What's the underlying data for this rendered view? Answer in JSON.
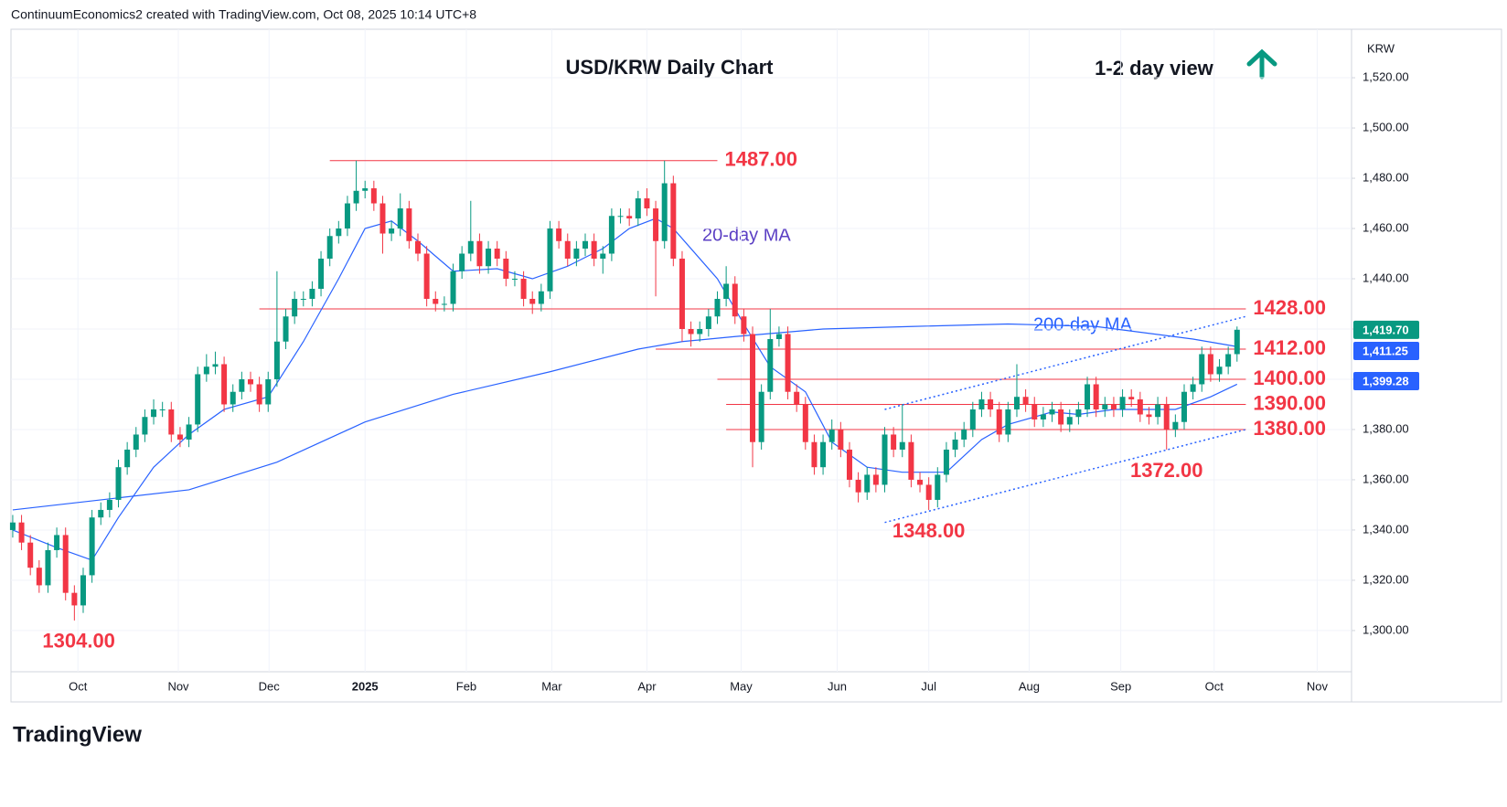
{
  "header": "ContinuumEconomics2 created with TradingView.com, Oct 08, 2025 10:14 UTC+8",
  "brand": "TradingView",
  "chart_data": {
    "type": "candlestick",
    "title": "USD/KRW Daily Chart",
    "subtitle": "1-2 day view",
    "y_axis_label": "KRW",
    "up_color": "#089981",
    "down_color": "#f23645",
    "xlim": [
      -0.2,
      152
    ],
    "ylim": [
      1283.6,
      1539.3
    ],
    "yticks": [
      {
        "value": 1300,
        "label": "1,300.00"
      },
      {
        "value": 1320,
        "label": "1,320.00"
      },
      {
        "value": 1340,
        "label": "1,340.00"
      },
      {
        "value": 1360,
        "label": "1,360.00"
      },
      {
        "value": 1380,
        "label": "1,380.00"
      },
      {
        "value": 1400,
        "label": "1,400.00"
      },
      {
        "value": 1420,
        "label": "1,420.00"
      },
      {
        "value": 1440,
        "label": "1,440.00"
      },
      {
        "value": 1460,
        "label": "1,460.00"
      },
      {
        "value": 1480,
        "label": "1,480.00"
      },
      {
        "value": 1500,
        "label": "1,500.00"
      },
      {
        "value": 1520,
        "label": "1,520.00"
      }
    ],
    "xticks": [
      {
        "value": 7.4,
        "label": "Oct"
      },
      {
        "value": 18.8,
        "label": "Nov"
      },
      {
        "value": 29.1,
        "label": "Dec"
      },
      {
        "value": 40,
        "label": "2025"
      },
      {
        "value": 51.5,
        "label": "Feb"
      },
      {
        "value": 61.2,
        "label": "Mar"
      },
      {
        "value": 72,
        "label": "Apr"
      },
      {
        "value": 82.7,
        "label": "May"
      },
      {
        "value": 93.6,
        "label": "Jun"
      },
      {
        "value": 104,
        "label": "Jul"
      },
      {
        "value": 115.4,
        "label": "Aug"
      },
      {
        "value": 125.8,
        "label": "Sep"
      },
      {
        "value": 136.4,
        "label": "Oct"
      },
      {
        "value": 148.1,
        "label": "Nov"
      }
    ],
    "grid": true,
    "open": [
      1340,
      1343,
      1335,
      1325,
      1318,
      1332,
      1338,
      1315,
      1310,
      1322,
      1345,
      1348,
      1352,
      1365,
      1372,
      1378,
      1385,
      1388,
      1388,
      1378,
      1376,
      1382,
      1402,
      1405,
      1406,
      1390,
      1395,
      1400,
      1398,
      1390,
      1400,
      1415,
      1425,
      1432,
      1432,
      1436,
      1448,
      1457,
      1460,
      1470,
      1475,
      1476,
      1470,
      1458,
      1460,
      1468,
      1455,
      1450,
      1432,
      1430,
      1430,
      1443,
      1450,
      1455,
      1445,
      1452,
      1448,
      1440,
      1440,
      1432,
      1430,
      1435,
      1460,
      1455,
      1448,
      1452,
      1455,
      1448,
      1450,
      1465,
      1465,
      1464,
      1472,
      1468,
      1455,
      1478,
      1448,
      1420,
      1418,
      1420,
      1425,
      1432,
      1438,
      1425,
      1418,
      1375,
      1395,
      1416,
      1418,
      1395,
      1390,
      1375,
      1365,
      1375,
      1380,
      1372,
      1360,
      1355,
      1362,
      1358,
      1378,
      1372,
      1375,
      1360,
      1358,
      1352,
      1362,
      1372,
      1376,
      1380,
      1388,
      1392,
      1388,
      1378,
      1388,
      1393,
      1390,
      1384,
      1386,
      1388,
      1382,
      1385,
      1388,
      1398,
      1388,
      1390,
      1388,
      1393,
      1392,
      1386,
      1385,
      1390,
      1380,
      1383,
      1395,
      1398,
      1410,
      1402,
      1405,
      1410
    ],
    "high": [
      1346,
      1346,
      1338,
      1328,
      1335,
      1341,
      1341,
      1318,
      1325,
      1348,
      1351,
      1355,
      1368,
      1375,
      1381,
      1388,
      1392,
      1391,
      1391,
      1381,
      1385,
      1405,
      1410,
      1411,
      1409,
      1398,
      1403,
      1403,
      1401,
      1403,
      1443,
      1428,
      1435,
      1435,
      1439,
      1451,
      1460,
      1463,
      1473,
      1487,
      1479,
      1479,
      1473,
      1463,
      1474,
      1471,
      1458,
      1453,
      1435,
      1433,
      1446,
      1453,
      1471,
      1458,
      1455,
      1455,
      1451,
      1443,
      1443,
      1435,
      1438,
      1463,
      1463,
      1458,
      1455,
      1458,
      1458,
      1453,
      1468,
      1468,
      1468,
      1475,
      1476,
      1471,
      1487,
      1481,
      1451,
      1423,
      1423,
      1428,
      1435,
      1445,
      1441,
      1428,
      1421,
      1398,
      1428,
      1421,
      1421,
      1398,
      1393,
      1378,
      1378,
      1384,
      1383,
      1375,
      1363,
      1365,
      1365,
      1381,
      1381,
      1390,
      1378,
      1363,
      1361,
      1365,
      1375,
      1379,
      1383,
      1391,
      1395,
      1395,
      1391,
      1391,
      1406,
      1396,
      1393,
      1389,
      1391,
      1391,
      1388,
      1391,
      1401,
      1401,
      1393,
      1393,
      1396,
      1396,
      1395,
      1389,
      1393,
      1393,
      1386,
      1398,
      1401,
      1413,
      1413,
      1408,
      1413,
      1421
    ],
    "low": [
      1337,
      1332,
      1322,
      1315,
      1315,
      1329,
      1312,
      1304,
      1307,
      1319,
      1342,
      1345,
      1349,
      1362,
      1369,
      1375,
      1382,
      1385,
      1375,
      1373,
      1373,
      1379,
      1399,
      1402,
      1387,
      1387,
      1392,
      1395,
      1387,
      1387,
      1397,
      1412,
      1422,
      1429,
      1429,
      1433,
      1445,
      1454,
      1457,
      1467,
      1472,
      1467,
      1450,
      1455,
      1457,
      1452,
      1447,
      1429,
      1427,
      1427,
      1427,
      1440,
      1447,
      1442,
      1442,
      1445,
      1437,
      1437,
      1429,
      1426,
      1427,
      1432,
      1452,
      1445,
      1445,
      1449,
      1445,
      1442,
      1447,
      1462,
      1461,
      1461,
      1465,
      1433,
      1452,
      1445,
      1415,
      1413,
      1415,
      1417,
      1422,
      1429,
      1422,
      1415,
      1365,
      1372,
      1392,
      1413,
      1392,
      1387,
      1372,
      1362,
      1362,
      1372,
      1369,
      1357,
      1351,
      1352,
      1355,
      1355,
      1369,
      1369,
      1357,
      1355,
      1348,
      1349,
      1359,
      1369,
      1373,
      1377,
      1385,
      1385,
      1375,
      1375,
      1385,
      1387,
      1381,
      1381,
      1383,
      1379,
      1379,
      1382,
      1385,
      1385,
      1385,
      1385,
      1385,
      1389,
      1383,
      1382,
      1382,
      1372,
      1377,
      1380,
      1392,
      1395,
      1399,
      1399,
      1402,
      1407
    ],
    "close": [
      1343,
      1335,
      1325,
      1318,
      1332,
      1338,
      1315,
      1310,
      1322,
      1345,
      1348,
      1352,
      1365,
      1372,
      1378,
      1385,
      1388,
      1388,
      1378,
      1376,
      1382,
      1402,
      1405,
      1406,
      1390,
      1395,
      1400,
      1398,
      1390,
      1400,
      1415,
      1425,
      1432,
      1432,
      1436,
      1448,
      1457,
      1460,
      1470,
      1475,
      1476,
      1470,
      1458,
      1460,
      1468,
      1455,
      1450,
      1432,
      1430,
      1430,
      1443,
      1450,
      1455,
      1445,
      1452,
      1448,
      1440,
      1440,
      1432,
      1430,
      1435,
      1460,
      1455,
      1448,
      1452,
      1455,
      1448,
      1450,
      1465,
      1465,
      1464,
      1472,
      1468,
      1455,
      1478,
      1448,
      1420,
      1418,
      1420,
      1425,
      1432,
      1438,
      1425,
      1418,
      1375,
      1395,
      1416,
      1418,
      1395,
      1390,
      1375,
      1365,
      1375,
      1380,
      1372,
      1360,
      1355,
      1362,
      1358,
      1378,
      1372,
      1375,
      1360,
      1358,
      1352,
      1362,
      1372,
      1376,
      1380,
      1388,
      1392,
      1388,
      1378,
      1388,
      1393,
      1390,
      1384,
      1386,
      1388,
      1382,
      1385,
      1388,
      1398,
      1388,
      1390,
      1388,
      1393,
      1392,
      1386,
      1385,
      1390,
      1380,
      1383,
      1395,
      1398,
      1410,
      1402,
      1405,
      1410,
      1419.7
    ],
    "lines": [
      {
        "name": "200-day MA",
        "color": "#2962ff",
        "x": [
          0,
          20,
          30,
          40,
          50,
          61,
          71,
          76,
          82,
          92,
          102,
          113,
          123,
          134,
          139
        ],
        "values": [
          1348,
          1356,
          1367,
          1383,
          1394,
          1403,
          1412,
          1415,
          1417,
          1420,
          1421,
          1422,
          1421,
          1416,
          1413
        ]
      },
      {
        "name": "20-day MA",
        "color": "#2962ff",
        "x": [
          0,
          5,
          9,
          12,
          16,
          20,
          24,
          29,
          33,
          37,
          40,
          43,
          46,
          50,
          55,
          59,
          63,
          67,
          70,
          73,
          75,
          80,
          83,
          86,
          90,
          93,
          97,
          101,
          106,
          110,
          113,
          118,
          121,
          125,
          129,
          132,
          136,
          139
        ],
        "values": [
          1340,
          1333,
          1328,
          1345,
          1365,
          1378,
          1388,
          1393,
          1415,
          1440,
          1460,
          1463,
          1455,
          1443,
          1444,
          1440,
          1445,
          1452,
          1460,
          1464,
          1460,
          1440,
          1422,
          1405,
          1395,
          1375,
          1365,
          1363,
          1363,
          1376,
          1382,
          1387,
          1386,
          1388,
          1388,
          1388,
          1393,
          1398
        ]
      }
    ],
    "line_labels": [
      {
        "text": "20-day MA",
        "color": "#5b3fc4"
      },
      {
        "text": "200-day MA",
        "color": "#2962ff"
      }
    ],
    "levels": [
      {
        "value": 1487,
        "label": "1487.00",
        "x": [
          36,
          80
        ]
      },
      {
        "value": 1428,
        "label": "1428.00",
        "x": [
          28,
          140
        ]
      },
      {
        "value": 1412,
        "label": "1412.00",
        "x": [
          73,
          140
        ]
      },
      {
        "value": 1400,
        "label": "1400.00",
        "x": [
          80,
          140
        ]
      },
      {
        "value": 1390,
        "label": "1390.00",
        "x": [
          81,
          140
        ]
      },
      {
        "value": 1380,
        "label": "1380.00",
        "x": [
          81,
          140
        ]
      }
    ],
    "point_labels": [
      {
        "value": 1304,
        "label": "1304.00",
        "x": 7.5
      },
      {
        "value": 1348,
        "label": "1348.00",
        "x": 104
      },
      {
        "value": 1372,
        "label": "1372.00",
        "x": 131
      }
    ],
    "trendlines": [
      {
        "x": [
          99,
          140
        ],
        "values": [
          1388,
          1425
        ]
      },
      {
        "x": [
          99,
          140
        ],
        "values": [
          1343,
          1380
        ]
      }
    ],
    "level_color": "#f23645",
    "price_tags": [
      {
        "value": 1419.7,
        "label": "1,419.70",
        "color": "#089981"
      },
      {
        "value": 1411.25,
        "label": "1,411.25",
        "color": "#2962ff"
      },
      {
        "value": 1399.28,
        "label": "1,399.28",
        "color": "#2962ff"
      }
    ]
  }
}
